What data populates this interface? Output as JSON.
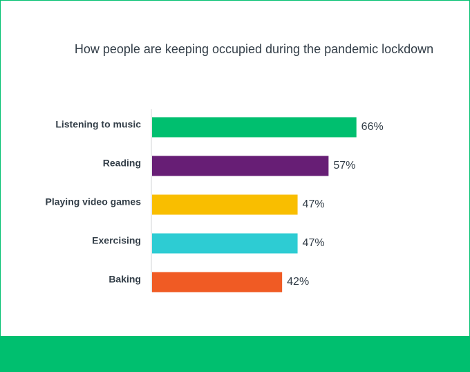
{
  "colors": {
    "frame": "#00bf6f",
    "footer": "#00bf6f",
    "axis": "#d0d3d6",
    "label_text": "#333e48",
    "value_text": "#333e48"
  },
  "chart_data": {
    "type": "bar",
    "orientation": "horizontal",
    "title": "How people are keeping occupied during the pandemic lockdown",
    "xlabel": "",
    "ylabel": "",
    "xlim": [
      0,
      100
    ],
    "grid": false,
    "legend": "none",
    "value_suffix": "%",
    "categories": [
      "Listening to music",
      "Reading",
      "Playing video games",
      "Exercising",
      "Baking"
    ],
    "values": [
      66,
      57,
      47,
      47,
      42
    ],
    "bar_colors": [
      "#00bf6f",
      "#671e75",
      "#f9be00",
      "#2dccd3",
      "#f05b24"
    ],
    "value_labels": [
      "66%",
      "57%",
      "47%",
      "47%",
      "42%"
    ]
  }
}
